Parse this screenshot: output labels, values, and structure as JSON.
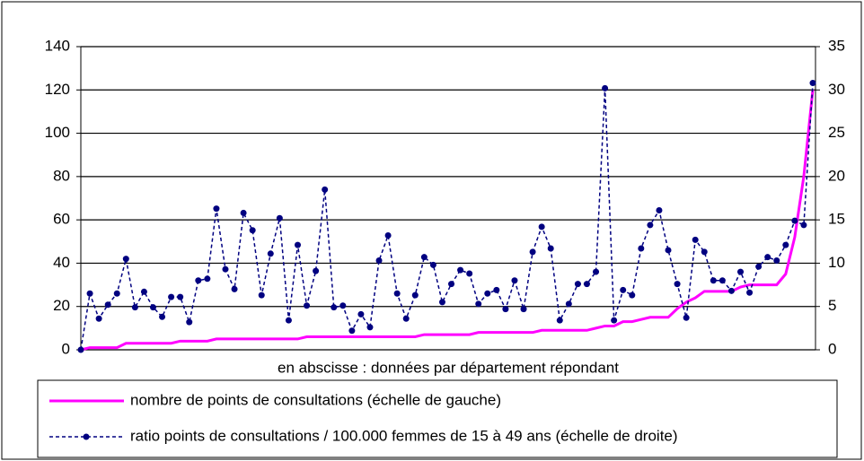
{
  "chart_data": {
    "type": "line",
    "xlabel": "en abscisse : données par département répondant",
    "categories": [
      null,
      null,
      null,
      null,
      null,
      null,
      null,
      null,
      null,
      null,
      null,
      null,
      null,
      null,
      null,
      null,
      null,
      null,
      null,
      null,
      null,
      null,
      null,
      null,
      null,
      null,
      null,
      null,
      null,
      null,
      null,
      null,
      null,
      null,
      null,
      null,
      null,
      null,
      null,
      null,
      null,
      null,
      null,
      null,
      null,
      null,
      null,
      null,
      null,
      null,
      null,
      null,
      null,
      null,
      null,
      null,
      null,
      null,
      null,
      null,
      null,
      null,
      null,
      null,
      null,
      null,
      null,
      null,
      null,
      null,
      null,
      null,
      null,
      null,
      null,
      null,
      null,
      null,
      null,
      null,
      null,
      null
    ],
    "series": [
      {
        "name": "nombre de points de consultations (échelle de gauche)",
        "color": "#ff00ff",
        "axis": "y",
        "values": [
          0,
          1,
          1,
          1,
          1,
          3,
          3,
          3,
          3,
          3,
          3,
          4,
          4,
          4,
          4,
          5,
          5,
          5,
          5,
          5,
          5,
          5,
          5,
          5,
          5,
          6,
          6,
          6,
          6,
          6,
          6,
          6,
          6,
          6,
          6,
          6,
          6,
          6,
          7,
          7,
          7,
          7,
          7,
          7,
          8,
          8,
          8,
          8,
          8,
          8,
          8,
          9,
          9,
          9,
          9,
          9,
          9,
          10,
          11,
          11,
          13,
          13,
          14,
          15,
          15,
          15,
          19,
          22,
          24,
          27,
          27,
          27,
          27,
          29,
          30,
          30,
          30,
          30,
          35,
          52,
          80,
          120
        ]
      },
      {
        "name": "ratio points de consultations / 100.000 femmes de 15 à 49 ans (échelle de droite)",
        "color": "#000080",
        "axis": "y2",
        "values": [
          0,
          6.5,
          3.6,
          5.2,
          6.5,
          10.5,
          4.9,
          6.7,
          4.9,
          3.8,
          6.1,
          6.1,
          3.2,
          8.0,
          8.2,
          16.3,
          9.3,
          7.0,
          15.8,
          13.8,
          6.3,
          11.1,
          15.2,
          3.4,
          12.1,
          5.1,
          9.1,
          18.5,
          4.9,
          5.1,
          2.2,
          4.1,
          2.6,
          10.3,
          13.2,
          6.5,
          3.6,
          6.3,
          10.7,
          9.8,
          5.5,
          7.6,
          9.2,
          8.8,
          5.3,
          6.5,
          6.9,
          4.7,
          8.0,
          4.7,
          11.3,
          14.2,
          11.7,
          3.4,
          5.3,
          7.6,
          7.6,
          9.0,
          30.2,
          3.4,
          6.9,
          6.3,
          11.7,
          14.4,
          16.1,
          11.5,
          7.6,
          3.7,
          12.7,
          11.3,
          8.0,
          8.0,
          6.8,
          9.0,
          6.6,
          9.6,
          10.7,
          10.3,
          12.1,
          14.9,
          14.4,
          30.8
        ]
      }
    ],
    "ylim": [
      0,
      140
    ],
    "yticks": [
      0,
      20,
      40,
      60,
      80,
      100,
      120,
      140
    ],
    "y2lim": [
      0,
      35
    ],
    "y2ticks": [
      0,
      5,
      10,
      15,
      20,
      25,
      30,
      35
    ],
    "grid": true,
    "legend": "bottom"
  }
}
